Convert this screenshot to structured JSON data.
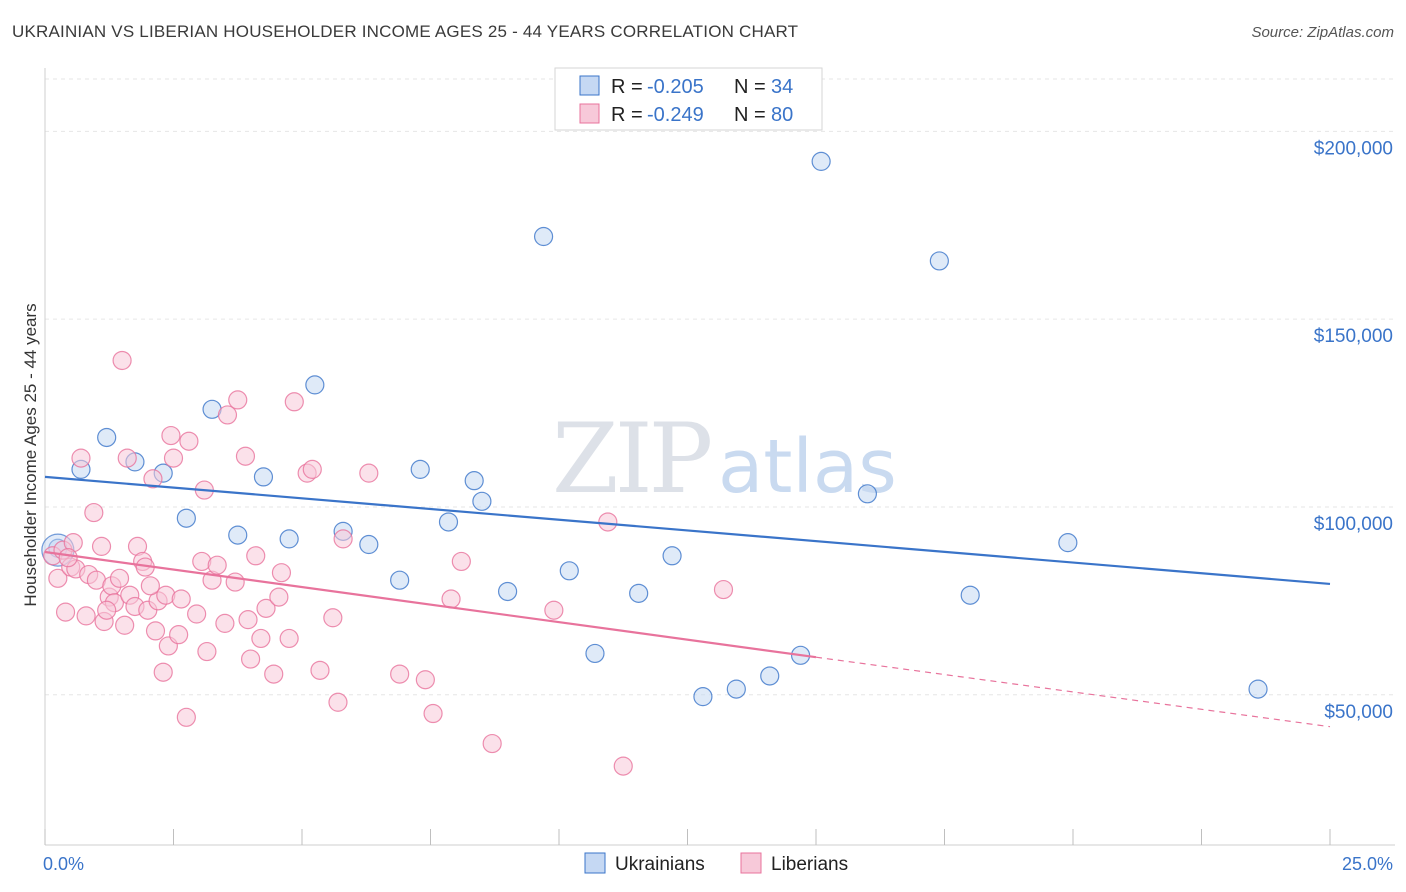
{
  "title": "UKRAINIAN VS LIBERIAN HOUSEHOLDER INCOME AGES 25 - 44 YEARS CORRELATION CHART",
  "source": "Source: ZipAtlas.com",
  "watermark": {
    "zip": "ZIP",
    "atlas": "atlas"
  },
  "colors": {
    "blue": "#3a74c9",
    "pink": "#e8739c",
    "blue_fill": "#c5d8f3",
    "pink_fill": "#f7c9d9",
    "grid": "#e6e6e6"
  },
  "legend": {
    "rows": [
      {
        "r_label": "R =",
        "r_value": "-0.205",
        "n_label": "N =",
        "n_value": "34"
      },
      {
        "r_label": "R =",
        "r_value": "-0.249",
        "n_label": "N =",
        "n_value": "80"
      }
    ]
  },
  "chart_data": {
    "type": "scatter",
    "ylabel": "Householder Income Ages 25 - 44 years",
    "xlim": [
      0,
      25
    ],
    "ylim": [
      10000,
      215000
    ],
    "x_tick_labels": [
      "0.0%",
      "25.0%"
    ],
    "y_ticks": [
      50000,
      100000,
      150000,
      200000
    ],
    "y_tick_labels": [
      "$50,000",
      "$100,000",
      "$150,000",
      "$200,000"
    ],
    "series": [
      {
        "name": "Ukrainians",
        "color": "#3a74c9",
        "trend": {
          "x": [
            0,
            25
          ],
          "y": [
            108000,
            79500
          ],
          "dashed_after": null
        },
        "points": [
          [
            0.25,
            89000
          ],
          [
            0.7,
            110000
          ],
          [
            1.2,
            118500
          ],
          [
            1.75,
            112000
          ],
          [
            2.3,
            109000
          ],
          [
            2.75,
            97000
          ],
          [
            3.25,
            126000
          ],
          [
            3.75,
            92500
          ],
          [
            4.25,
            108000
          ],
          [
            4.75,
            91500
          ],
          [
            5.25,
            132500
          ],
          [
            5.8,
            93500
          ],
          [
            6.3,
            90000
          ],
          [
            6.9,
            80500
          ],
          [
            7.3,
            110000
          ],
          [
            7.85,
            96000
          ],
          [
            8.35,
            107000
          ],
          [
            8.5,
            101500
          ],
          [
            9.0,
            77500
          ],
          [
            9.7,
            172000
          ],
          [
            10.2,
            83000
          ],
          [
            10.7,
            61000
          ],
          [
            11.55,
            77000
          ],
          [
            12.2,
            87000
          ],
          [
            12.8,
            49500
          ],
          [
            13.45,
            51500
          ],
          [
            14.1,
            55000
          ],
          [
            14.7,
            60500
          ],
          [
            15.1,
            192000
          ],
          [
            16.0,
            103500
          ],
          [
            17.4,
            165500
          ],
          [
            18.0,
            76500
          ],
          [
            19.9,
            90500
          ],
          [
            23.6,
            51500
          ]
        ]
      },
      {
        "name": "Liberians",
        "color": "#e8739c",
        "trend": {
          "x": [
            0,
            15
          ],
          "y": [
            88000,
            60000
          ],
          "dashed_to": [
            25,
            41500
          ]
        },
        "points": [
          [
            0.15,
            87000
          ],
          [
            0.25,
            81000
          ],
          [
            0.35,
            88500
          ],
          [
            0.4,
            72000
          ],
          [
            0.5,
            84000
          ],
          [
            0.55,
            90500
          ],
          [
            0.6,
            83500
          ],
          [
            0.7,
            113000
          ],
          [
            0.8,
            71000
          ],
          [
            0.85,
            82000
          ],
          [
            0.95,
            98500
          ],
          [
            1.0,
            80500
          ],
          [
            1.1,
            89500
          ],
          [
            1.15,
            69500
          ],
          [
            1.25,
            76000
          ],
          [
            1.3,
            79000
          ],
          [
            1.35,
            74500
          ],
          [
            1.45,
            81000
          ],
          [
            1.5,
            139000
          ],
          [
            1.55,
            68500
          ],
          [
            1.6,
            113000
          ],
          [
            1.65,
            76500
          ],
          [
            1.75,
            73500
          ],
          [
            1.8,
            89500
          ],
          [
            1.9,
            85500
          ],
          [
            1.95,
            84000
          ],
          [
            2.0,
            72500
          ],
          [
            2.1,
            107500
          ],
          [
            2.15,
            67000
          ],
          [
            2.2,
            75000
          ],
          [
            2.3,
            56000
          ],
          [
            2.35,
            76500
          ],
          [
            2.4,
            63000
          ],
          [
            2.45,
            119000
          ],
          [
            2.5,
            113000
          ],
          [
            2.6,
            66000
          ],
          [
            2.65,
            75500
          ],
          [
            2.75,
            44000
          ],
          [
            2.8,
            117500
          ],
          [
            2.95,
            71500
          ],
          [
            3.05,
            85500
          ],
          [
            3.1,
            104500
          ],
          [
            3.25,
            80500
          ],
          [
            3.35,
            84500
          ],
          [
            3.55,
            124500
          ],
          [
            3.7,
            80000
          ],
          [
            3.75,
            128500
          ],
          [
            3.9,
            113500
          ],
          [
            3.95,
            70000
          ],
          [
            4.0,
            59500
          ],
          [
            4.1,
            87000
          ],
          [
            4.2,
            65000
          ],
          [
            4.3,
            73000
          ],
          [
            4.45,
            55500
          ],
          [
            4.6,
            82500
          ],
          [
            4.75,
            65000
          ],
          [
            4.85,
            128000
          ],
          [
            5.1,
            109000
          ],
          [
            5.2,
            110000
          ],
          [
            5.35,
            56500
          ],
          [
            5.6,
            70500
          ],
          [
            5.7,
            48000
          ],
          [
            5.8,
            91500
          ],
          [
            6.3,
            109000
          ],
          [
            6.9,
            55500
          ],
          [
            7.4,
            54000
          ],
          [
            7.55,
            45000
          ],
          [
            7.9,
            75500
          ],
          [
            8.1,
            85500
          ],
          [
            8.7,
            37000
          ],
          [
            9.9,
            72500
          ],
          [
            10.95,
            96000
          ],
          [
            11.25,
            31000
          ],
          [
            13.2,
            78000
          ],
          [
            3.5,
            69000
          ],
          [
            1.2,
            72500
          ],
          [
            0.45,
            86500
          ],
          [
            2.05,
            79000
          ],
          [
            4.55,
            76000
          ],
          [
            3.15,
            61500
          ]
        ]
      }
    ]
  }
}
